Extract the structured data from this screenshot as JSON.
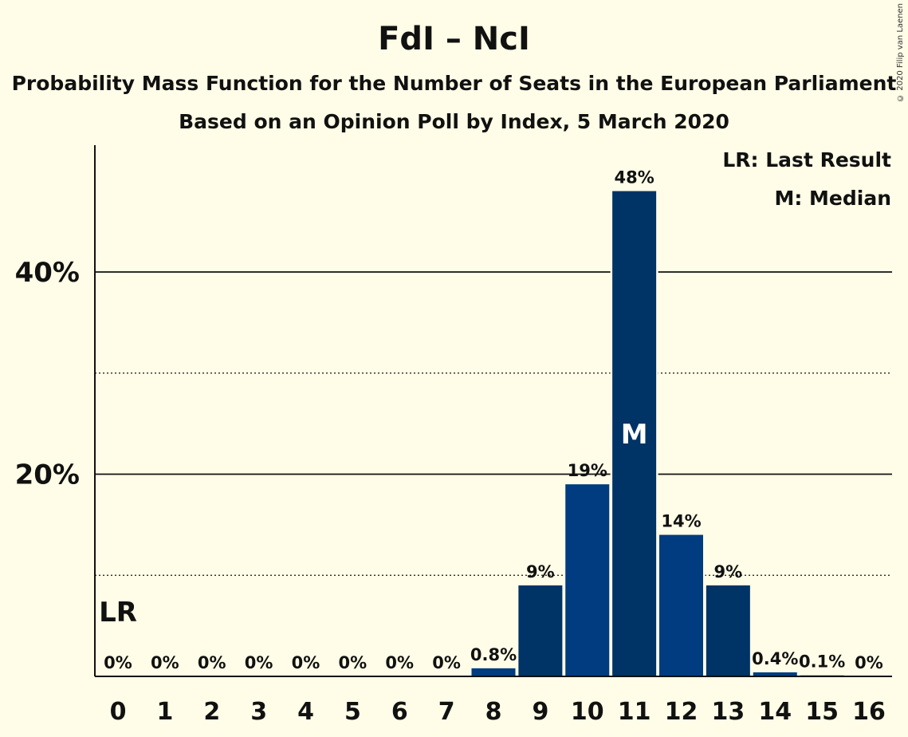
{
  "title": "FdI – NcI",
  "subtitle": "Probability Mass Function for the Number of Seats in the European Parliament",
  "subtitle2": "Based on an Opinion Poll by Index, 5 March 2020",
  "copyright": "© 2020 Filip van Laenen",
  "legend": {
    "lr": "LR: Last Result",
    "m": "M: Median"
  },
  "colors": {
    "background": "#fffde7",
    "bar_dark": "#003366",
    "bar_light": "#003c7f",
    "text": "#111111"
  },
  "chart_data": {
    "type": "bar",
    "categories": [
      "0",
      "1",
      "2",
      "3",
      "4",
      "5",
      "6",
      "7",
      "8",
      "9",
      "10",
      "11",
      "12",
      "13",
      "14",
      "15",
      "16"
    ],
    "values": [
      0,
      0,
      0,
      0,
      0,
      0,
      0,
      0,
      0.8,
      9,
      19,
      48,
      14,
      9,
      0.4,
      0.1,
      0
    ],
    "data_labels": [
      "0%",
      "0%",
      "0%",
      "0%",
      "0%",
      "0%",
      "0%",
      "0%",
      "0.8%",
      "9%",
      "19%",
      "48%",
      "14%",
      "9%",
      "0.4%",
      "0.1%",
      "0%"
    ],
    "ylim": [
      0,
      52
    ],
    "y_ticks": [
      {
        "value": 20,
        "label": "20%"
      },
      {
        "value": 40,
        "label": "40%"
      }
    ],
    "minor_grid": [
      10,
      30
    ],
    "last_result_seat": "0",
    "last_result_marker": "LR",
    "median_seat": "11",
    "median_marker": "M",
    "legend_position": "top-right"
  }
}
